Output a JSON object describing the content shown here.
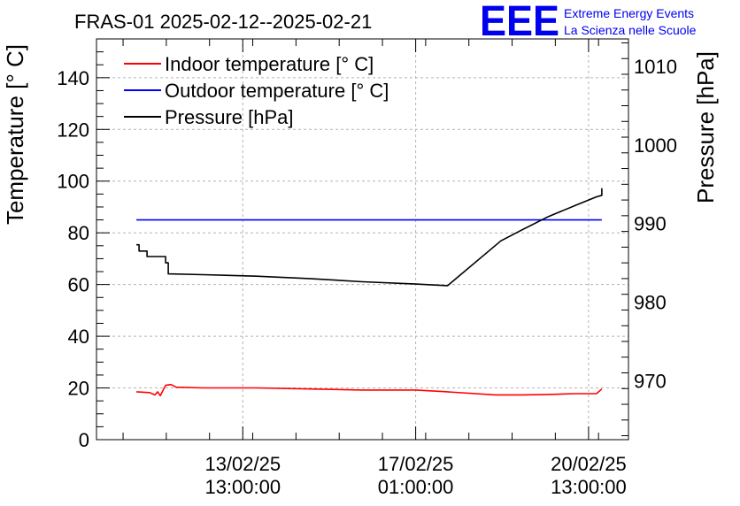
{
  "chart_data": {
    "type": "line",
    "title": "FRAS-01 2025-02-12--2025-02-21",
    "logo": {
      "mark": "EEE",
      "line1": "Extreme Energy Events",
      "line2": "La Scienza nelle Scuole",
      "color": "#0000ee"
    },
    "ylabel_left": "Temperature [° C]",
    "ylabel_right": "Pressure [hPa]",
    "ylim_left": [
      0,
      155
    ],
    "ylim_right": [
      962.5,
      1013.5
    ],
    "yticks_left": [
      0,
      20,
      40,
      60,
      80,
      100,
      120,
      140
    ],
    "yticks_right": [
      970,
      980,
      990,
      1000,
      1010
    ],
    "xlim": [
      0,
      10
    ],
    "xticks": [
      {
        "pos": 2.75,
        "line1": "13/02/25",
        "line2": "13:00:00"
      },
      {
        "pos": 6.0,
        "line1": "17/02/25",
        "line2": "01:00:00"
      },
      {
        "pos": 9.25,
        "line1": "20/02/25",
        "line2": "13:00:00"
      }
    ],
    "legend_placement": "top-left",
    "series": [
      {
        "name": "Indoor temperature [° C]",
        "axis": "left",
        "color": "#ff0000",
        "points": [
          [
            0.75,
            18.5
          ],
          [
            1.0,
            18.2
          ],
          [
            1.1,
            17.3
          ],
          [
            1.15,
            18.5
          ],
          [
            1.2,
            17.0
          ],
          [
            1.3,
            21.0
          ],
          [
            1.4,
            21.3
          ],
          [
            1.5,
            20.3
          ],
          [
            2.0,
            20.0
          ],
          [
            3.0,
            20.0
          ],
          [
            4.0,
            19.6
          ],
          [
            5.0,
            19.2
          ],
          [
            6.0,
            19.2
          ],
          [
            6.5,
            18.6
          ],
          [
            7.5,
            17.3
          ],
          [
            8.0,
            17.3
          ],
          [
            8.5,
            17.5
          ],
          [
            9.0,
            17.8
          ],
          [
            9.4,
            17.8
          ],
          [
            9.5,
            19.6
          ]
        ]
      },
      {
        "name": "Outdoor temperature [° C]",
        "axis": "left",
        "color": "#0000ff",
        "points": [
          [
            0.75,
            85.0
          ],
          [
            9.5,
            85.0
          ]
        ]
      },
      {
        "name": "Pressure [hPa]",
        "axis": "right",
        "color": "#000000",
        "points": [
          [
            0.75,
            987.3
          ],
          [
            0.8,
            987.3
          ],
          [
            0.8,
            986.5
          ],
          [
            0.95,
            986.5
          ],
          [
            0.95,
            985.8
          ],
          [
            1.3,
            985.8
          ],
          [
            1.3,
            985.0
          ],
          [
            1.35,
            985.0
          ],
          [
            1.35,
            983.6
          ],
          [
            2.0,
            983.5
          ],
          [
            3.0,
            983.3
          ],
          [
            4.0,
            983.0
          ],
          [
            5.0,
            982.6
          ],
          [
            6.0,
            982.3
          ],
          [
            6.6,
            982.1
          ],
          [
            7.6,
            987.8
          ],
          [
            8.0,
            989.2
          ],
          [
            8.5,
            990.9
          ],
          [
            9.0,
            992.3
          ],
          [
            9.4,
            993.4
          ],
          [
            9.5,
            993.6
          ],
          [
            9.5,
            994.5
          ]
        ]
      }
    ]
  }
}
